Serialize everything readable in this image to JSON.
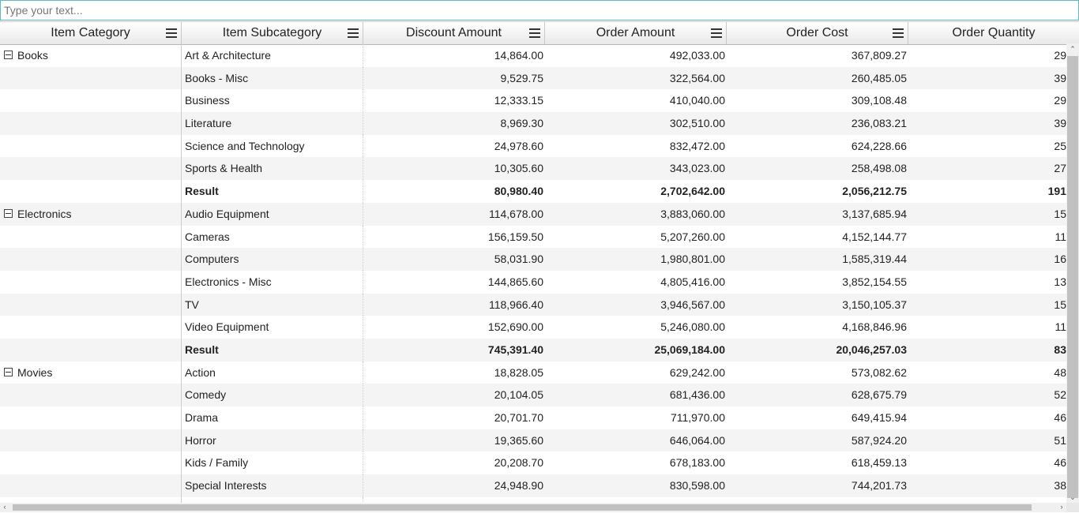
{
  "search": {
    "placeholder": "Type your text..."
  },
  "columns": [
    {
      "label": "Item Category"
    },
    {
      "label": "Item Subcategory"
    },
    {
      "label": "Discount Amount"
    },
    {
      "label": "Order Amount"
    },
    {
      "label": "Order Cost"
    },
    {
      "label": "Order Quantity"
    }
  ],
  "icons": {
    "column_menu": "hamburger-menu-icon",
    "group_toggle": "collapse-minus-icon"
  },
  "rows": [
    {
      "category": "Books",
      "sub": "Art & Architecture",
      "disc": "14,864.00",
      "amt": "492,033.00",
      "cost": "367,809.27",
      "qty": "29"
    },
    {
      "category": "",
      "sub": "Books - Misc",
      "disc": "9,529.75",
      "amt": "322,564.00",
      "cost": "260,485.05",
      "qty": "39"
    },
    {
      "category": "",
      "sub": "Business",
      "disc": "12,333.15",
      "amt": "410,040.00",
      "cost": "309,108.48",
      "qty": "29"
    },
    {
      "category": "",
      "sub": "Literature",
      "disc": "8,969.30",
      "amt": "302,510.00",
      "cost": "236,083.21",
      "qty": "39"
    },
    {
      "category": "",
      "sub": "Science and Technology",
      "disc": "24,978.60",
      "amt": "832,472.00",
      "cost": "624,228.66",
      "qty": "25"
    },
    {
      "category": "",
      "sub": "Sports & Health",
      "disc": "10,305.60",
      "amt": "343,023.00",
      "cost": "258,498.08",
      "qty": "27"
    },
    {
      "category": "",
      "sub": "Result",
      "disc": "80,980.40",
      "amt": "2,702,642.00",
      "cost": "2,056,212.75",
      "qty": "191",
      "result": true
    },
    {
      "category": "Electronics",
      "sub": "Audio Equipment",
      "disc": "114,678.00",
      "amt": "3,883,060.00",
      "cost": "3,137,685.94",
      "qty": "15"
    },
    {
      "category": "",
      "sub": "Cameras",
      "disc": "156,159.50",
      "amt": "5,207,260.00",
      "cost": "4,152,144.77",
      "qty": "11"
    },
    {
      "category": "",
      "sub": "Computers",
      "disc": "58,031.90",
      "amt": "1,980,801.00",
      "cost": "1,585,319.44",
      "qty": "16"
    },
    {
      "category": "",
      "sub": "Electronics - Misc",
      "disc": "144,865.60",
      "amt": "4,805,416.00",
      "cost": "3,852,154.55",
      "qty": "13"
    },
    {
      "category": "",
      "sub": "TV",
      "disc": "118,966.40",
      "amt": "3,946,567.00",
      "cost": "3,150,105.37",
      "qty": "15"
    },
    {
      "category": "",
      "sub": "Video Equipment",
      "disc": "152,690.00",
      "amt": "5,246,080.00",
      "cost": "4,168,846.96",
      "qty": "11"
    },
    {
      "category": "",
      "sub": "Result",
      "disc": "745,391.40",
      "amt": "25,069,184.00",
      "cost": "20,046,257.03",
      "qty": "83",
      "result": true
    },
    {
      "category": "Movies",
      "sub": "Action",
      "disc": "18,828.05",
      "amt": "629,242.00",
      "cost": "573,082.62",
      "qty": "48"
    },
    {
      "category": "",
      "sub": "Comedy",
      "disc": "20,104.05",
      "amt": "681,436.00",
      "cost": "628,675.79",
      "qty": "52"
    },
    {
      "category": "",
      "sub": "Drama",
      "disc": "20,701.70",
      "amt": "711,970.00",
      "cost": "649,415.94",
      "qty": "46"
    },
    {
      "category": "",
      "sub": "Horror",
      "disc": "19,365.60",
      "amt": "646,064.00",
      "cost": "587,924.20",
      "qty": "51"
    },
    {
      "category": "",
      "sub": "Kids / Family",
      "disc": "20,208.70",
      "amt": "678,183.00",
      "cost": "618,459.13",
      "qty": "46"
    },
    {
      "category": "",
      "sub": "Special Interests",
      "disc": "24,948.90",
      "amt": "830,598.00",
      "cost": "744,201.73",
      "qty": "38"
    },
    {
      "category": "",
      "sub": "",
      "disc": "",
      "amt": "",
      "cost": "",
      "qty": ""
    }
  ]
}
